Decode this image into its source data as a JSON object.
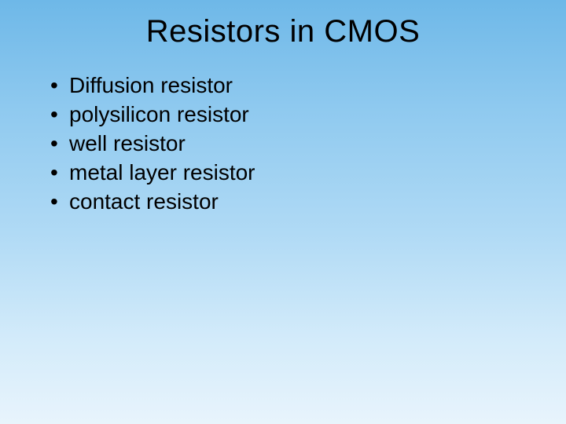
{
  "slide": {
    "title": "Resistors in CMOS",
    "bullets": [
      "Diffusion resistor",
      "polysilicon resistor",
      "well resistor",
      "metal layer resistor",
      "contact resistor"
    ]
  },
  "style": {
    "background_gradient_top": "#6eb8e8",
    "background_gradient_bottom": "#e8f4fc",
    "title_fontsize": 40,
    "title_color": "#000000",
    "bullet_fontsize": 28,
    "bullet_color": "#000000",
    "font_family": "Arial"
  }
}
